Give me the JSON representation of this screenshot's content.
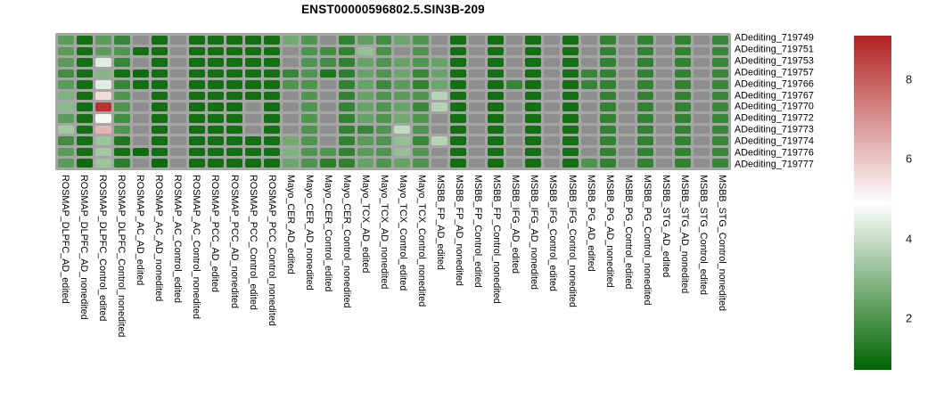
{
  "title": "ENST00000596802.5.SIN3B-209",
  "colors": {
    "panel_bg": "#a5a5a5",
    "na_cell": "#8e8e8e",
    "page_bg": "#ffffff",
    "label_color": "#000000"
  },
  "chart_data": {
    "type": "heatmap",
    "title": "ENST00000596802.5.SIN3B-209",
    "legend_position": "right",
    "rows": [
      "ADediting_719749",
      "ADediting_719751",
      "ADediting_719753",
      "ADediting_719757",
      "ADediting_719766",
      "ADediting_719767",
      "ADediting_719770",
      "ADediting_719772",
      "ADediting_719773",
      "ADediting_719774",
      "ADediting_719776",
      "ADediting_719777"
    ],
    "columns": [
      "ROSMAP_DLPFC_AD_edited",
      "ROSMAP_DLPFC_AD_nonedited",
      "ROSMAP_DLPFC_Control_edited",
      "ROSMAP_DLPFC_Control_nonedited",
      "ROSMAP_AC_AD_edited",
      "ROSMAP_AC_AD_nonedited",
      "ROSMAP_AC_Control_edited",
      "ROSMAP_AC_Control_nonedited",
      "ROSMAP_PCC_AD_edited",
      "ROSMAP_PCC_AD_nonedited",
      "ROSMAP_PCC_Control_edited",
      "ROSMAP_PCC_Control_nonedited",
      "Mayo_CER_AD_edited",
      "Mayo_CER_AD_nonedited",
      "Mayo_CER_Control_edited",
      "Mayo_CER_Control_nonedited",
      "Mayo_TCX_AD_edited",
      "Mayo_TCX_AD_nonedited",
      "Mayo_TCX_Control_edited",
      "Mayo_TCX_Control_nonedited",
      "MSBB_FP_AD_edited",
      "MSBB_FP_AD_nonedited",
      "MSBB_FP_Control_edited",
      "MSBB_FP_Control_nonedited",
      "MSBB_IFG_AD_edited",
      "MSBB_IFG_AD_nonedited",
      "MSBB_IFG_Control_edited",
      "MSBB_IFG_Control_nonedited",
      "MSBB_PG_AD_edited",
      "MSBB_PG_AD_nonedited",
      "MSBB_PG_Control_edited",
      "MSBB_PG_Control_nonedited",
      "MSBB_STG_AD_edited",
      "MSBB_STG_AD_nonedited",
      "MSBB_STG_Control_edited",
      "MSBB_STG_Control_nonedited"
    ],
    "matrix": [
      [
        2.2,
        1.0,
        2.2,
        1.6,
        null,
        1.0,
        null,
        1.0,
        1.0,
        1.0,
        1.0,
        1.0,
        2.6,
        2.0,
        null,
        1.5,
        2.3,
        1.8,
        2.5,
        2.0,
        null,
        1.0,
        null,
        1.0,
        null,
        1.0,
        null,
        1.0,
        null,
        1.5,
        null,
        1.5,
        null,
        1.5,
        null,
        1.6
      ],
      [
        2.2,
        1.0,
        2.2,
        2.0,
        1.0,
        1.0,
        null,
        1.0,
        1.0,
        1.0,
        1.0,
        1.0,
        null,
        2.0,
        1.8,
        1.5,
        3.2,
        1.9,
        null,
        2.0,
        null,
        1.0,
        null,
        1.0,
        null,
        1.0,
        null,
        1.0,
        null,
        1.5,
        null,
        1.5,
        null,
        1.5,
        null,
        1.6
      ],
      [
        2.2,
        1.0,
        4.4,
        1.6,
        null,
        1.0,
        null,
        1.0,
        1.0,
        1.0,
        1.0,
        1.0,
        null,
        2.0,
        1.8,
        1.5,
        2.4,
        2.0,
        2.4,
        2.0,
        2.4,
        1.0,
        null,
        1.0,
        null,
        1.0,
        null,
        1.0,
        null,
        1.5,
        null,
        1.5,
        null,
        1.5,
        null,
        1.6
      ],
      [
        1.8,
        1.0,
        2.9,
        1.0,
        0.9,
        1.0,
        null,
        1.0,
        1.0,
        1.0,
        1.0,
        1.0,
        1.6,
        2.0,
        1.2,
        1.4,
        2.4,
        2.0,
        2.5,
        1.6,
        2.4,
        1.0,
        null,
        1.0,
        null,
        1.0,
        null,
        1.0,
        1.6,
        1.5,
        null,
        1.5,
        null,
        1.5,
        null,
        1.6
      ],
      [
        2.2,
        1.0,
        4.4,
        1.6,
        1.0,
        1.0,
        null,
        1.0,
        1.0,
        1.0,
        1.0,
        1.0,
        2.0,
        2.0,
        null,
        1.5,
        2.4,
        1.7,
        2.2,
        1.5,
        2.5,
        1.0,
        null,
        1.0,
        1.6,
        1.0,
        null,
        1.0,
        1.6,
        1.5,
        null,
        1.5,
        null,
        1.5,
        null,
        1.6
      ],
      [
        2.8,
        1.0,
        5.6,
        2.0,
        null,
        1.0,
        null,
        1.0,
        1.0,
        1.0,
        1.0,
        1.0,
        null,
        2.0,
        null,
        1.5,
        2.4,
        2.0,
        2.2,
        2.0,
        3.7,
        1.0,
        null,
        1.0,
        null,
        1.0,
        null,
        1.0,
        null,
        1.5,
        null,
        1.5,
        null,
        1.5,
        null,
        1.6
      ],
      [
        3.0,
        1.0,
        8.8,
        2.0,
        null,
        1.0,
        null,
        1.0,
        1.0,
        1.0,
        null,
        1.0,
        null,
        2.0,
        null,
        1.5,
        2.4,
        2.0,
        2.4,
        1.6,
        3.7,
        1.0,
        null,
        1.0,
        null,
        1.0,
        null,
        1.0,
        null,
        1.5,
        null,
        1.5,
        null,
        1.5,
        null,
        1.6
      ],
      [
        2.2,
        1.0,
        4.7,
        1.8,
        null,
        1.0,
        null,
        1.0,
        1.0,
        1.0,
        null,
        1.0,
        null,
        2.0,
        null,
        1.5,
        2.4,
        2.0,
        2.6,
        2.0,
        null,
        1.0,
        null,
        1.0,
        null,
        1.0,
        null,
        1.0,
        null,
        1.5,
        null,
        1.5,
        null,
        1.5,
        null,
        1.6
      ],
      [
        3.4,
        1.0,
        6.3,
        2.0,
        null,
        1.0,
        null,
        1.0,
        1.0,
        1.0,
        null,
        1.0,
        null,
        2.0,
        null,
        1.5,
        1.6,
        2.0,
        3.9,
        2.0,
        null,
        1.0,
        null,
        1.0,
        null,
        1.0,
        null,
        1.0,
        null,
        1.5,
        null,
        1.5,
        null,
        1.5,
        null,
        1.6
      ],
      [
        1.8,
        1.0,
        3.3,
        1.2,
        null,
        1.0,
        null,
        1.0,
        1.0,
        1.0,
        1.0,
        1.0,
        2.6,
        2.0,
        null,
        1.5,
        2.2,
        2.0,
        3.2,
        1.6,
        3.7,
        1.0,
        null,
        1.0,
        null,
        1.0,
        null,
        1.0,
        null,
        1.5,
        null,
        1.5,
        null,
        1.5,
        null,
        1.6
      ],
      [
        2.2,
        1.0,
        3.4,
        1.0,
        0.9,
        1.0,
        null,
        1.0,
        1.0,
        1.0,
        1.0,
        1.0,
        2.8,
        2.0,
        2.0,
        1.5,
        2.2,
        2.0,
        3.2,
        2.0,
        null,
        1.0,
        null,
        1.0,
        null,
        1.0,
        null,
        1.0,
        null,
        1.5,
        null,
        1.5,
        null,
        1.5,
        null,
        1.6
      ],
      [
        2.2,
        0.9,
        3.3,
        1.4,
        null,
        0.9,
        null,
        1.0,
        1.0,
        1.0,
        1.0,
        1.0,
        2.5,
        2.0,
        1.4,
        1.5,
        2.4,
        2.0,
        2.4,
        2.0,
        null,
        1.0,
        null,
        1.0,
        null,
        1.0,
        null,
        1.0,
        2.0,
        1.5,
        null,
        1.5,
        null,
        1.5,
        null,
        1.6
      ]
    ],
    "colorbar": {
      "ticks": [
        8,
        6,
        4,
        2
      ],
      "vmin": 0.7,
      "vmax": 9.1,
      "vmid": 4.9,
      "color_low": "#006400",
      "color_mid": "#ffffff",
      "color_high": "#b22222",
      "na_color": "#8e8e8e"
    },
    "grid": "off",
    "xlabel": "",
    "ylabel": ""
  }
}
